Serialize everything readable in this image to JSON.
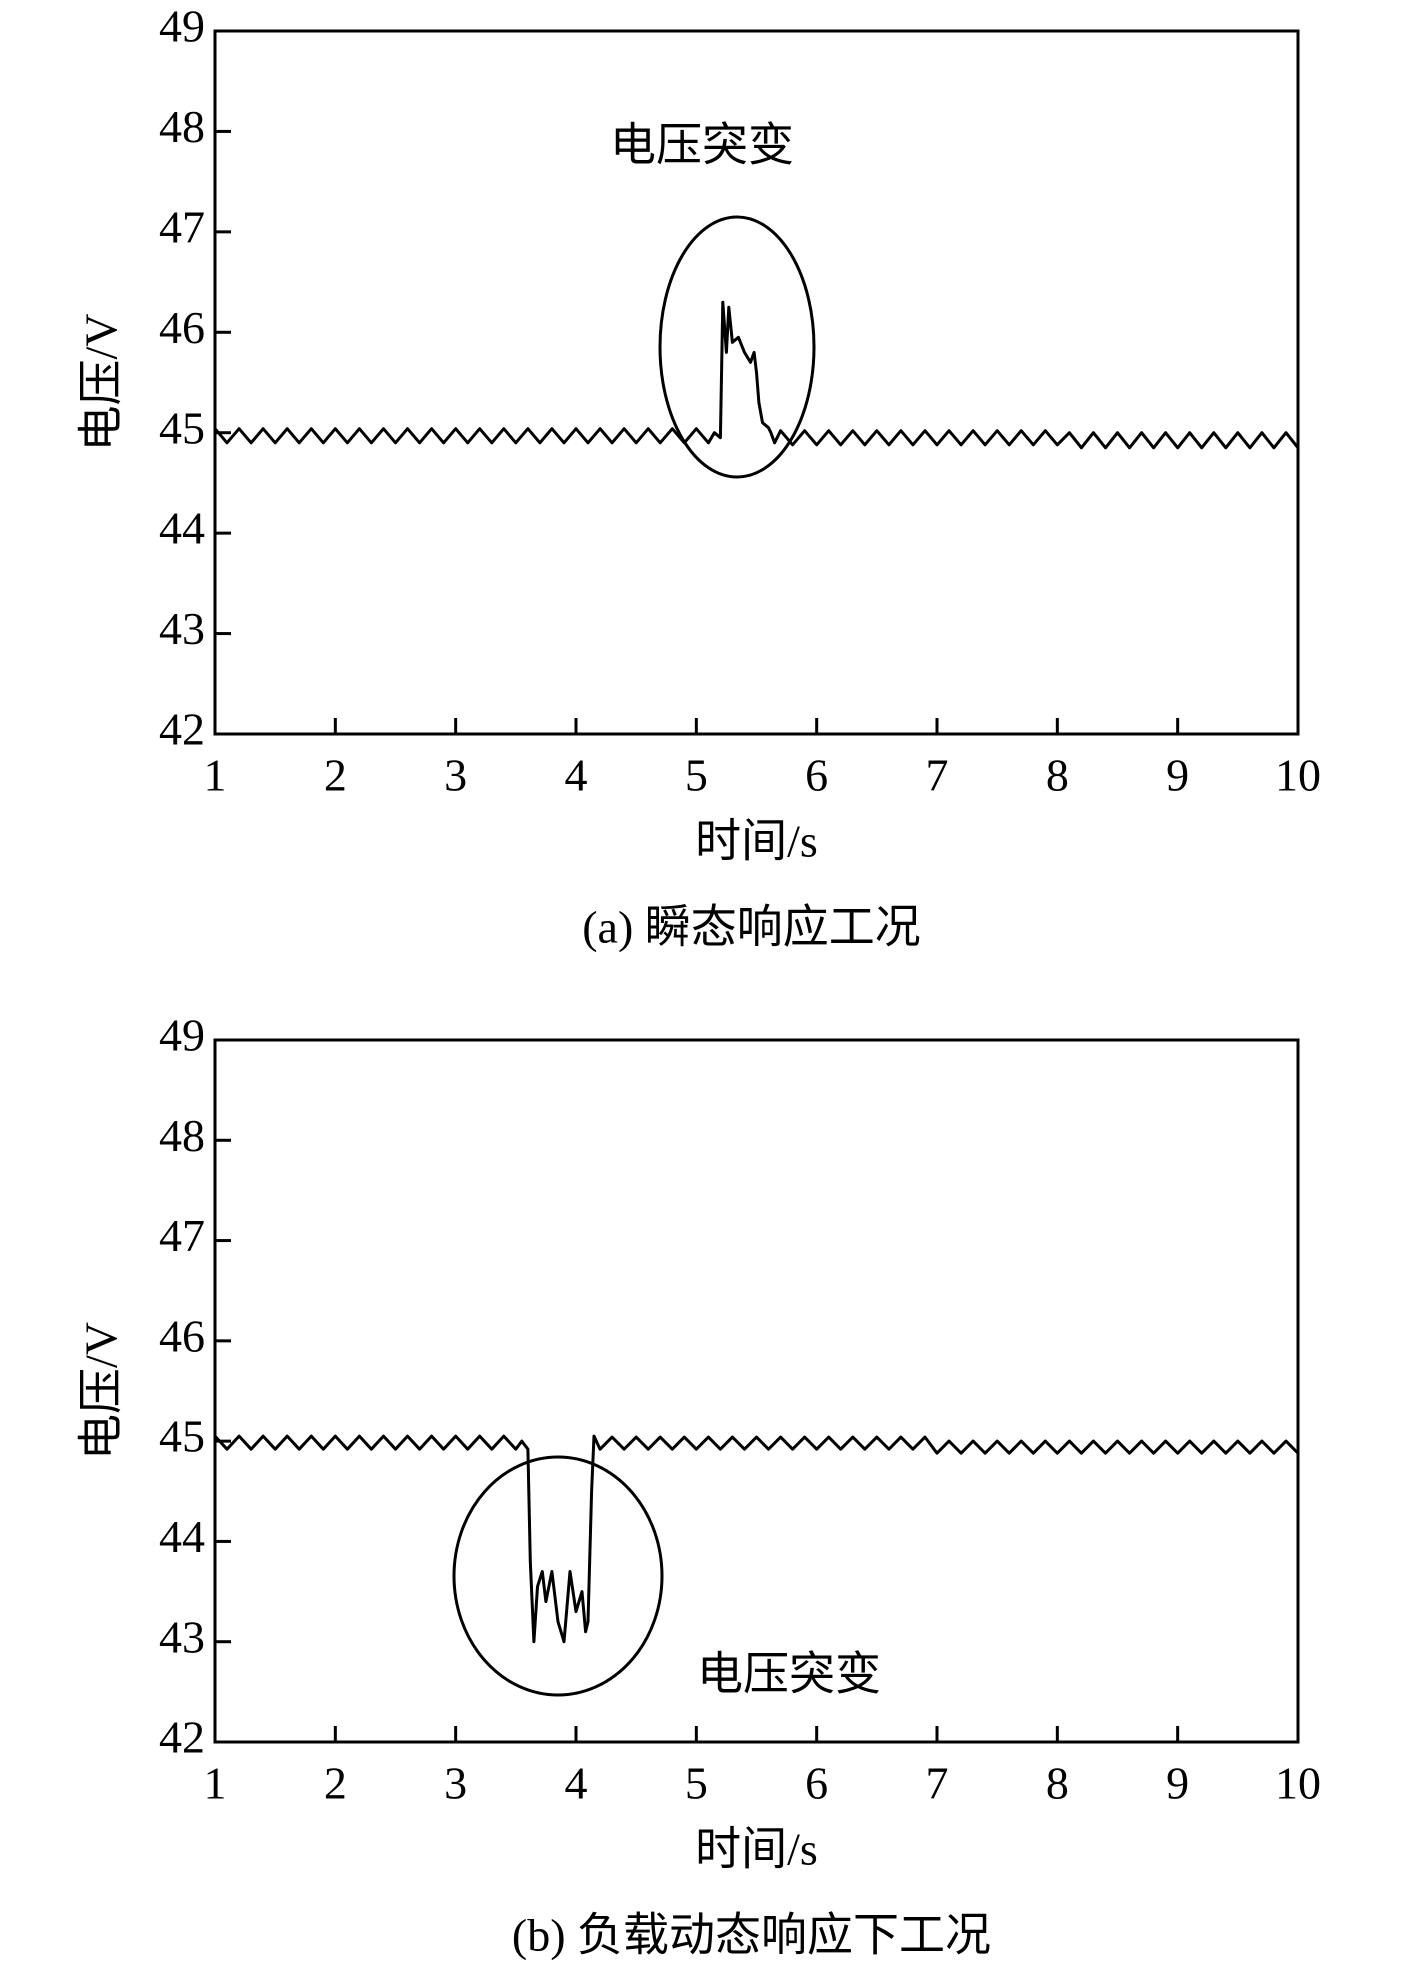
{
  "chart_data": [
    {
      "type": "line",
      "title": "(a) 瞬态响应工况",
      "xlabel": "时间/s",
      "ylabel": "电压/V",
      "annotation": "电压突变",
      "color": "#000000",
      "xlim": [
        1,
        10
      ],
      "ylim": [
        42,
        49
      ],
      "xticks": [
        1,
        2,
        3,
        4,
        5,
        6,
        7,
        8,
        9,
        10
      ],
      "yticks": [
        42,
        43,
        44,
        45,
        46,
        47,
        48,
        49
      ],
      "x": [
        1,
        1.1,
        1.2,
        1.3,
        1.4,
        1.5,
        1.6,
        1.7,
        1.8,
        1.9,
        2,
        2.1,
        2.2,
        2.3,
        2.4,
        2.5,
        2.6,
        2.7,
        2.8,
        2.9,
        3,
        3.1,
        3.2,
        3.3,
        3.4,
        3.5,
        3.6,
        3.7,
        3.8,
        3.9,
        4,
        4.1,
        4.2,
        4.3,
        4.4,
        4.5,
        4.6,
        4.7,
        4.8,
        4.9,
        5,
        5.1,
        5.15,
        5.2,
        5.22,
        5.25,
        5.27,
        5.3,
        5.35,
        5.4,
        5.45,
        5.48,
        5.5,
        5.52,
        5.55,
        5.6,
        5.62,
        5.65,
        5.7,
        5.8,
        5.9,
        6,
        6.1,
        6.2,
        6.3,
        6.4,
        6.5,
        6.6,
        6.7,
        6.8,
        6.9,
        7,
        7.1,
        7.2,
        7.3,
        7.4,
        7.5,
        7.6,
        7.7,
        7.8,
        7.9,
        8,
        8.1,
        8.2,
        8.3,
        8.4,
        8.5,
        8.6,
        8.7,
        8.8,
        8.9,
        9,
        9.1,
        9.2,
        9.3,
        9.4,
        9.5,
        9.6,
        9.7,
        9.8,
        9.9,
        10
      ],
      "values": [
        45.04,
        44.9,
        45.04,
        44.9,
        45.04,
        44.9,
        45.04,
        44.9,
        45.04,
        44.9,
        45.04,
        44.9,
        45.04,
        44.9,
        45.04,
        44.9,
        45.04,
        44.9,
        45.04,
        44.9,
        45.04,
        44.9,
        45.04,
        44.9,
        45.04,
        44.9,
        45.04,
        44.9,
        45.04,
        44.9,
        45.04,
        44.9,
        45.04,
        44.9,
        45.04,
        44.9,
        45.04,
        44.9,
        45.04,
        44.9,
        45.04,
        44.9,
        45.0,
        44.95,
        46.3,
        45.8,
        46.25,
        45.9,
        45.95,
        45.8,
        45.7,
        45.8,
        45.6,
        45.3,
        45.1,
        45.05,
        45.0,
        44.9,
        45.02,
        44.88,
        45.02,
        44.88,
        45.02,
        44.88,
        45.02,
        44.88,
        45.02,
        44.88,
        45.02,
        44.88,
        45.02,
        44.88,
        45.02,
        44.88,
        45.02,
        44.88,
        45.02,
        44.88,
        45.02,
        44.88,
        45.02,
        44.88,
        45.0,
        44.85,
        45.0,
        44.85,
        45.0,
        44.85,
        45.0,
        44.85,
        45.0,
        44.85,
        45.0,
        44.85,
        45.0,
        44.85,
        45.0,
        44.85,
        45.0,
        44.85,
        45.0,
        44.85
      ]
    },
    {
      "type": "line",
      "title": "(b) 负载动态响应下工况",
      "xlabel": "时间/s",
      "ylabel": "电压/V",
      "annotation": "电压突变",
      "color": "#000000",
      "xlim": [
        1,
        10
      ],
      "ylim": [
        42,
        49
      ],
      "xticks": [
        1,
        2,
        3,
        4,
        5,
        6,
        7,
        8,
        9,
        10
      ],
      "yticks": [
        42,
        43,
        44,
        45,
        46,
        47,
        48,
        49
      ],
      "x": [
        1,
        1.1,
        1.2,
        1.3,
        1.4,
        1.5,
        1.6,
        1.7,
        1.8,
        1.9,
        2,
        2.1,
        2.2,
        2.3,
        2.4,
        2.5,
        2.6,
        2.7,
        2.8,
        2.9,
        3,
        3.1,
        3.2,
        3.3,
        3.4,
        3.5,
        3.55,
        3.6,
        3.62,
        3.65,
        3.68,
        3.72,
        3.75,
        3.8,
        3.85,
        3.9,
        3.95,
        4,
        4.05,
        4.08,
        4.1,
        4.13,
        4.15,
        4.2,
        4.3,
        4.4,
        4.5,
        4.6,
        4.7,
        4.8,
        4.9,
        5,
        5.1,
        5.2,
        5.3,
        5.4,
        5.5,
        5.6,
        5.7,
        5.8,
        5.9,
        6,
        6.1,
        6.2,
        6.3,
        6.4,
        6.5,
        6.6,
        6.7,
        6.8,
        6.9,
        7,
        7.1,
        7.2,
        7.3,
        7.4,
        7.5,
        7.6,
        7.7,
        7.8,
        7.9,
        8,
        8.1,
        8.2,
        8.3,
        8.4,
        8.5,
        8.6,
        8.7,
        8.8,
        8.9,
        9,
        9.1,
        9.2,
        9.3,
        9.4,
        9.5,
        9.6,
        9.7,
        9.8,
        9.9,
        10
      ],
      "values": [
        45.05,
        44.92,
        45.05,
        44.92,
        45.05,
        44.92,
        45.05,
        44.92,
        45.05,
        44.92,
        45.05,
        44.92,
        45.05,
        44.92,
        45.05,
        44.92,
        45.05,
        44.92,
        45.05,
        44.92,
        45.05,
        44.92,
        45.05,
        44.92,
        45.05,
        44.92,
        45.0,
        44.92,
        43.8,
        43.0,
        43.55,
        43.7,
        43.4,
        43.7,
        43.2,
        43.0,
        43.7,
        43.3,
        43.5,
        43.1,
        43.2,
        44.5,
        45.05,
        44.92,
        45.04,
        44.92,
        45.04,
        44.92,
        45.04,
        44.92,
        45.04,
        44.92,
        45.04,
        44.92,
        45.04,
        44.92,
        45.04,
        44.92,
        45.04,
        44.92,
        45.04,
        44.92,
        45.04,
        44.92,
        45.04,
        44.92,
        45.04,
        44.92,
        45.04,
        44.92,
        45.04,
        44.88,
        45.0,
        44.88,
        45.0,
        44.88,
        45.0,
        44.88,
        45.0,
        44.88,
        45.0,
        44.88,
        45.0,
        44.88,
        45.0,
        44.88,
        45.0,
        44.88,
        45.0,
        44.88,
        45.0,
        44.88,
        45.0,
        44.88,
        45.0,
        44.88,
        45.0,
        44.88,
        45.0,
        44.88,
        45.0,
        44.88
      ]
    }
  ]
}
